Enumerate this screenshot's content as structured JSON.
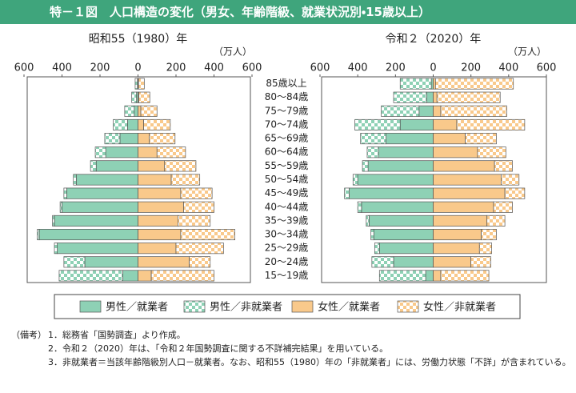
{
  "title": "特－１図　人口構造の変化（男女、年齢階級、就業状況別・15歳以上）",
  "chart_data": [
    {
      "type": "pyramid",
      "title": "昭和55（1980）年",
      "unit_label": "（万人）",
      "categories": [
        "85歳以上",
        "80～84歳",
        "75～79歳",
        "70～74歳",
        "65～69歳",
        "60～64歳",
        "55～59歳",
        "50～54歳",
        "45～49歳",
        "40～44歳",
        "35～39歳",
        "30～34歳",
        "25～29歳",
        "20～24歳",
        "15～19歳"
      ],
      "xlim": [
        -600,
        600
      ],
      "xticks": [
        {
          "value": -600,
          "label": "600"
        },
        {
          "value": -400,
          "label": "400"
        },
        {
          "value": -200,
          "label": "200"
        },
        0,
        200,
        400,
        600
      ],
      "series": [
        {
          "name": "男性／就業者",
          "color": "#8ed1b5",
          "pattern": false,
          "values": [
            3,
            8,
            20,
            55,
            95,
            170,
            220,
            325,
            375,
            400,
            440,
            520,
            425,
            280,
            80
          ]
        },
        {
          "name": "男性／非就業者",
          "color": "#8ed1b5",
          "pattern": true,
          "values": [
            12,
            25,
            50,
            75,
            80,
            55,
            30,
            15,
            15,
            10,
            10,
            10,
            15,
            110,
            335
          ]
        },
        {
          "name": "女性／就業者",
          "color": "#f9c98b",
          "pattern": false,
          "values": [
            3,
            5,
            15,
            30,
            60,
            100,
            140,
            175,
            225,
            240,
            210,
            225,
            200,
            270,
            70
          ]
        },
        {
          "name": "女性／非就業者",
          "color": "#f9c98b",
          "pattern": true,
          "values": [
            30,
            57,
            85,
            140,
            135,
            150,
            165,
            150,
            165,
            160,
            170,
            285,
            250,
            110,
            330
          ]
        }
      ]
    },
    {
      "type": "pyramid",
      "title": "令和２（2020）年",
      "unit_label": "（万人）",
      "categories": [
        "85歳以上",
        "80～84歳",
        "75～79歳",
        "70～74歳",
        "65～69歳",
        "60～64歳",
        "55～59歳",
        "50～54歳",
        "45～49歳",
        "40～44歳",
        "35～39歳",
        "30～34歳",
        "25～29歳",
        "20～24歳",
        "15～19歳"
      ],
      "xlim": [
        -600,
        600
      ],
      "xticks": [
        {
          "value": -600,
          "label": "600"
        },
        {
          "value": -400,
          "label": "400"
        },
        {
          "value": -200,
          "label": "200"
        },
        0,
        200,
        400,
        600
      ],
      "series": [
        {
          "color": "#8ed1b5",
          "pattern": false,
          "values": [
            10,
            35,
            75,
            175,
            250,
            290,
            345,
            400,
            445,
            380,
            340,
            315,
            285,
            210,
            40
          ]
        },
        {
          "color": "#8ed1b5",
          "pattern": true,
          "values": [
            165,
            175,
            200,
            240,
            135,
            60,
            30,
            25,
            25,
            20,
            15,
            15,
            25,
            115,
            245
          ]
        },
        {
          "color": "#f9c98b",
          "pattern": false,
          "values": [
            12,
            20,
            40,
            125,
            170,
            235,
            325,
            360,
            380,
            320,
            285,
            255,
            245,
            200,
            40
          ]
        },
        {
          "color": "#f9c98b",
          "pattern": true,
          "values": [
            413,
            335,
            350,
            360,
            165,
            150,
            95,
            95,
            105,
            100,
            95,
            80,
            65,
            105,
            255
          ]
        }
      ]
    }
  ],
  "notes": {
    "label": "（備考）",
    "items": [
      "1．総務省「国勢調査」より作成。",
      "2．令和２（2020）年は、「令和２年国勢調査に関する不詳補完結果」を用いている。",
      "3．非就業者＝当該年齢階級別人口－就業者。なお、昭和55（1980）年の「非就業者」には、労働力状態「不詳」が含まれている。"
    ]
  }
}
